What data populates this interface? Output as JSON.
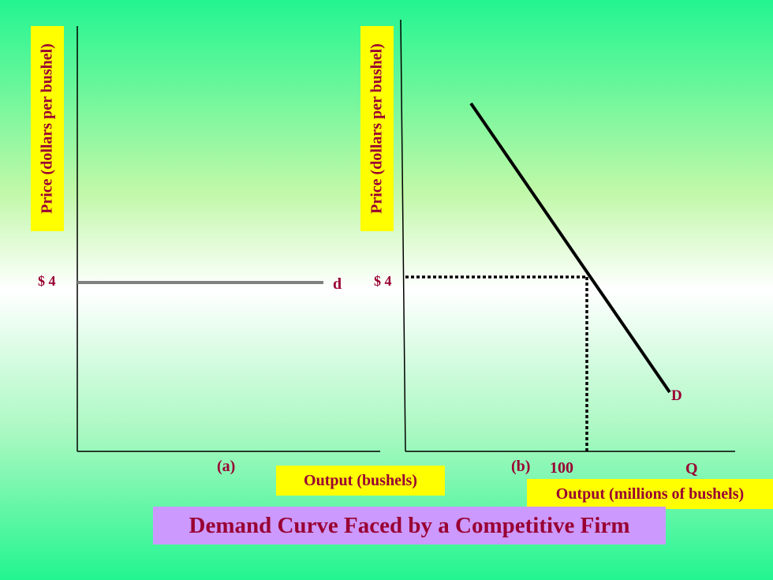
{
  "title": "Demand Curve Faced by a Competitive Firm",
  "chart_data": [
    {
      "type": "line",
      "panel_label": "(a)",
      "ylabel": "Price (dollars per bushel)",
      "xlabel": "Output (bushels)",
      "price_tick": "$ 4",
      "series": [
        {
          "name": "d",
          "points": [
            [
              0,
              4
            ],
            [
              1,
              4
            ]
          ],
          "color": "#808080"
        }
      ]
    },
    {
      "type": "line",
      "panel_label": "(b)",
      "ylabel": "Price (dollars per bushel)",
      "xlabel": "Output (millions of bushels)",
      "price_tick": "$ 4",
      "quantity_tick": "100",
      "quantity_axis_symbol": "Q",
      "equilibrium": {
        "x": 100,
        "y": 4
      },
      "series": [
        {
          "name": "D",
          "color": "#000000"
        }
      ]
    }
  ]
}
